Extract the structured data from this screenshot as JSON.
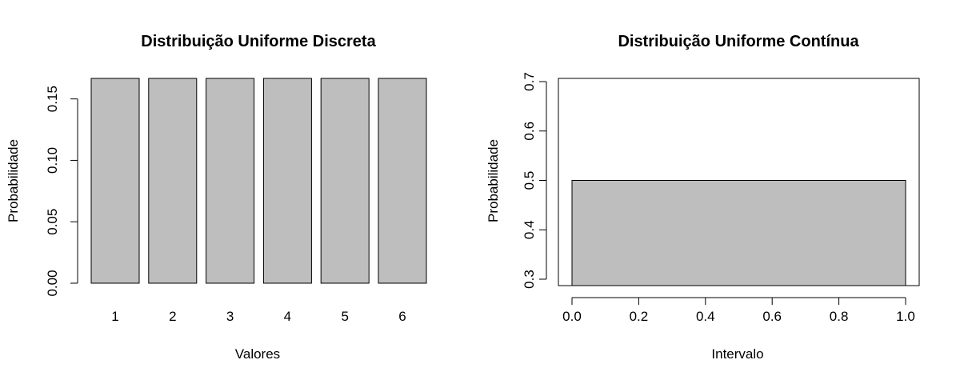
{
  "chart_data": [
    {
      "type": "bar",
      "title": "Distribuição Uniforme Discreta",
      "xlabel": "Valores",
      "ylabel": "Probabilidade",
      "categories": [
        "1",
        "2",
        "3",
        "4",
        "5",
        "6"
      ],
      "values": [
        0.1667,
        0.1667,
        0.1667,
        0.1667,
        0.1667,
        0.1667
      ],
      "ylim": [
        0,
        0.1667
      ],
      "yticks": [
        "0.00",
        "0.05",
        "0.10",
        "0.15"
      ],
      "bar_color": "#bebebe",
      "grid": false,
      "box": false
    },
    {
      "type": "area",
      "title": "Distribuição Uniforme Contínua",
      "xlabel": "Intervalo",
      "ylabel": "Probabilidade",
      "x": [
        0,
        1
      ],
      "y": [
        0.5,
        0.5
      ],
      "xlim": [
        0,
        1
      ],
      "ylim": [
        0.3,
        0.7
      ],
      "xticks": [
        "0.0",
        "0.2",
        "0.4",
        "0.6",
        "0.8",
        "1.0"
      ],
      "yticks": [
        "0.3",
        "0.4",
        "0.5",
        "0.6",
        "0.7"
      ],
      "fill_color": "#bebebe",
      "grid": false,
      "box": true
    }
  ]
}
